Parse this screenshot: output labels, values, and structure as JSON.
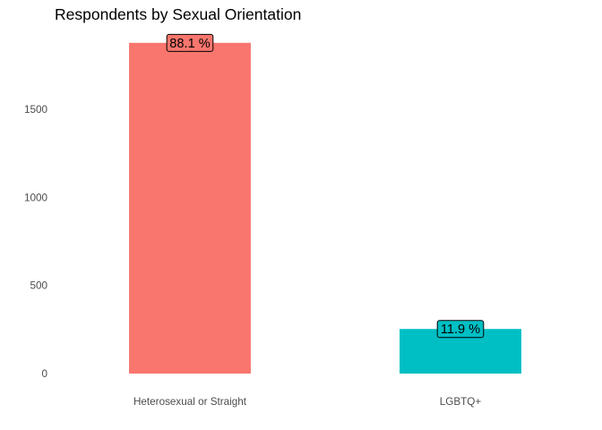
{
  "chart_data": {
    "type": "bar",
    "title": "Respondents by Sexual Orientation",
    "xlabel": "",
    "ylabel": "",
    "categories": [
      "Heterosexual or Straight",
      "LGBTQ+"
    ],
    "values": [
      1877,
      253
    ],
    "data_labels": [
      "88.1 %",
      "11.9 %"
    ],
    "colors": [
      "#f8766d",
      "#00bfc4"
    ],
    "y_ticks": [
      0,
      500,
      1000,
      1500
    ],
    "ylim": [
      0,
      1960
    ],
    "grid": false,
    "legend": "none"
  }
}
